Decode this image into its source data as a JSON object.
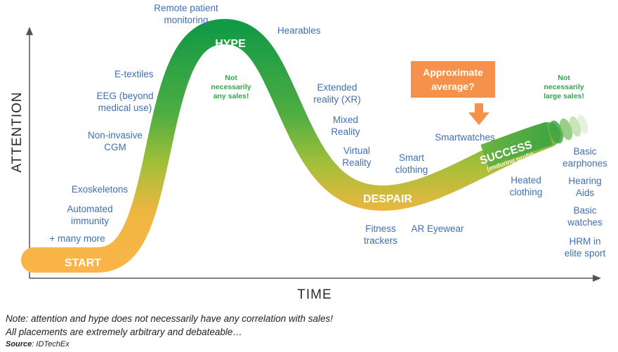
{
  "axes": {
    "y_label": "ATTENTION",
    "x_label": "TIME"
  },
  "stages": {
    "start": "START",
    "hype": "HYPE",
    "despair": "DESPAIR",
    "success": "SUCCESS",
    "success_sub": "(enduring profit)"
  },
  "notes": {
    "hype_note": [
      "Not",
      "necessarily",
      "any sales!"
    ],
    "success_note": [
      "Not",
      "necessarily",
      "large sales!"
    ]
  },
  "callout": {
    "lines": [
      "Approximate",
      "average?"
    ],
    "color": "#f5914a"
  },
  "items": {
    "remote_patient_monitoring": [
      "Remote patient",
      "monitoring"
    ],
    "hearables": [
      "Hearables"
    ],
    "e_textiles": [
      "E-textiles"
    ],
    "eeg": [
      "EEG (beyond",
      "medical use)"
    ],
    "non_invasive_cgm": [
      "Non-invasive",
      "CGM"
    ],
    "exoskeletons": [
      "Exoskeletons"
    ],
    "automated_immunity": [
      "Automated",
      "immunity"
    ],
    "many_more": [
      "+ many more"
    ],
    "extended_reality": [
      "Extended",
      "reality (XR)"
    ],
    "mixed_reality": [
      "Mixed",
      "Reality"
    ],
    "virtual_reality": [
      "Virtual",
      "Reality"
    ],
    "smart_clothing": [
      "Smart",
      "clothing"
    ],
    "smartwatches": [
      "Smartwatches"
    ],
    "fitness_trackers": [
      "Fitness",
      "trackers"
    ],
    "ar_eyewear": [
      "AR Eyewear"
    ],
    "heated_clothing": [
      "Heated",
      "clothing"
    ],
    "basic_earphones": [
      "Basic",
      "earphones"
    ],
    "hearing_aids": [
      "Hearing",
      "Aids"
    ],
    "basic_watches": [
      "Basic",
      "watches"
    ],
    "hrm_elite_sport": [
      "HRM in",
      "elite sport"
    ]
  },
  "footer": {
    "note_line1": "Note: attention and hype does not necessarily have any correlation with sales!",
    "note_line2": "All placements are extremely arbitrary and debateable…",
    "source_label": "Source",
    "source_value": ": IDTechEx"
  },
  "colors": {
    "curve_orange": "#f7b24a",
    "curve_green": "#159a45",
    "item_blue": "#3f6fb5",
    "note_green": "#2fa84a"
  }
}
